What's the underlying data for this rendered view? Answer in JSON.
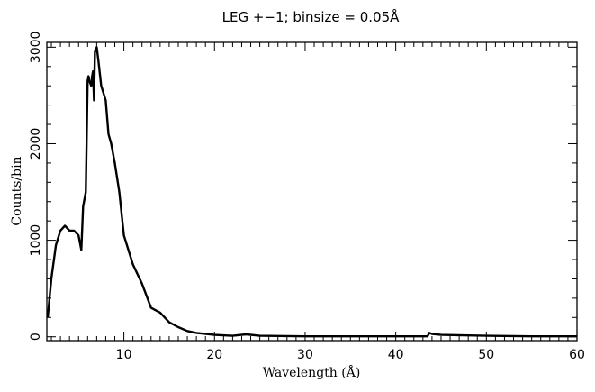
{
  "chart_data": {
    "type": "line",
    "title": "LEG +−1; binsize = 0.05Å",
    "xlabel": "Wavelength (Å)",
    "ylabel": "Counts/bin",
    "xlim": [
      1.5,
      60
    ],
    "ylim": [
      -40,
      3050
    ],
    "x_ticks": [
      10,
      20,
      30,
      40,
      50,
      60
    ],
    "y_ticks": [
      0,
      1000,
      2000,
      3000
    ],
    "grid": false,
    "series": [
      {
        "x": [
          1.6,
          2.0,
          2.5,
          3.0,
          3.5,
          4.0,
          4.5,
          5.0,
          5.3,
          5.5,
          5.8,
          6.0,
          6.1,
          6.2,
          6.4,
          6.5,
          6.6,
          6.7,
          6.8,
          7.0,
          7.2,
          7.5,
          8.0,
          8.3,
          8.6,
          9.0,
          9.5,
          10.0,
          10.5,
          11.0,
          12.0,
          13.0,
          14.0,
          15.0,
          16.0,
          17.0,
          18.0,
          20.0,
          22.0,
          23.5,
          25.0,
          30.0,
          35.0,
          40.0,
          43.5,
          43.7,
          44.0,
          45.0,
          50.0,
          55.0,
          60.0
        ],
        "y": [
          200,
          600,
          950,
          1100,
          1150,
          1100,
          1100,
          1050,
          900,
          1350,
          1500,
          2650,
          2700,
          2650,
          2600,
          2700,
          2750,
          2450,
          2950,
          3000,
          2850,
          2600,
          2450,
          2100,
          2000,
          1800,
          1500,
          1050,
          900,
          750,
          550,
          300,
          250,
          150,
          100,
          60,
          40,
          20,
          10,
          25,
          10,
          5,
          5,
          5,
          5,
          40,
          30,
          20,
          10,
          5,
          5
        ]
      }
    ]
  }
}
